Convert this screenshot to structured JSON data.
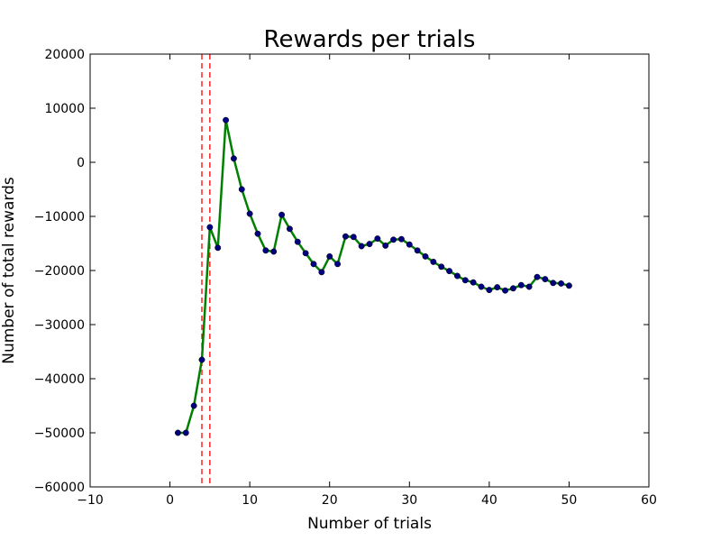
{
  "chart_data": {
    "type": "line",
    "title": "Rewards per trials",
    "xlabel": "Number of trials",
    "ylabel": "Number of total rewards",
    "xlim": [
      -10,
      60
    ],
    "ylim": [
      -60000,
      20000
    ],
    "xticks": [
      -10,
      0,
      10,
      20,
      30,
      40,
      50,
      60
    ],
    "yticks": [
      -60000,
      -50000,
      -40000,
      -30000,
      -20000,
      -10000,
      0,
      10000,
      20000
    ],
    "grid": false,
    "series": [
      {
        "line_color": "#008000",
        "marker_color": "#000080",
        "x": [
          1,
          2,
          3,
          4,
          5,
          6,
          7,
          8,
          9,
          10,
          11,
          12,
          13,
          14,
          15,
          16,
          17,
          18,
          19,
          20,
          21,
          22,
          23,
          24,
          25,
          26,
          27,
          28,
          29,
          30,
          31,
          32,
          33,
          34,
          35,
          36,
          37,
          38,
          39,
          40,
          41,
          42,
          43,
          44,
          45,
          46,
          47,
          48,
          49,
          50
        ],
        "y": [
          -50000,
          -50000,
          -45000,
          -36500,
          -12000,
          -15800,
          7800,
          700,
          -5000,
          -9500,
          -13200,
          -16300,
          -16500,
          -9700,
          -12300,
          -14700,
          -16800,
          -18800,
          -20300,
          -17400,
          -18800,
          -13700,
          -13800,
          -15500,
          -15100,
          -14100,
          -15400,
          -14300,
          -14200,
          -15200,
          -16300,
          -17400,
          -18400,
          -19300,
          -20100,
          -21000,
          -21800,
          -22200,
          -23000,
          -23600,
          -23100,
          -23700,
          -23300,
          -22700,
          -23000,
          -21200,
          -21600,
          -22300,
          -22400,
          -22800
        ]
      }
    ],
    "vlines": [
      {
        "x": 4,
        "color": "#ff0000",
        "style": "dashed"
      },
      {
        "x": 5,
        "color": "#ff0000",
        "style": "dashed"
      }
    ]
  }
}
